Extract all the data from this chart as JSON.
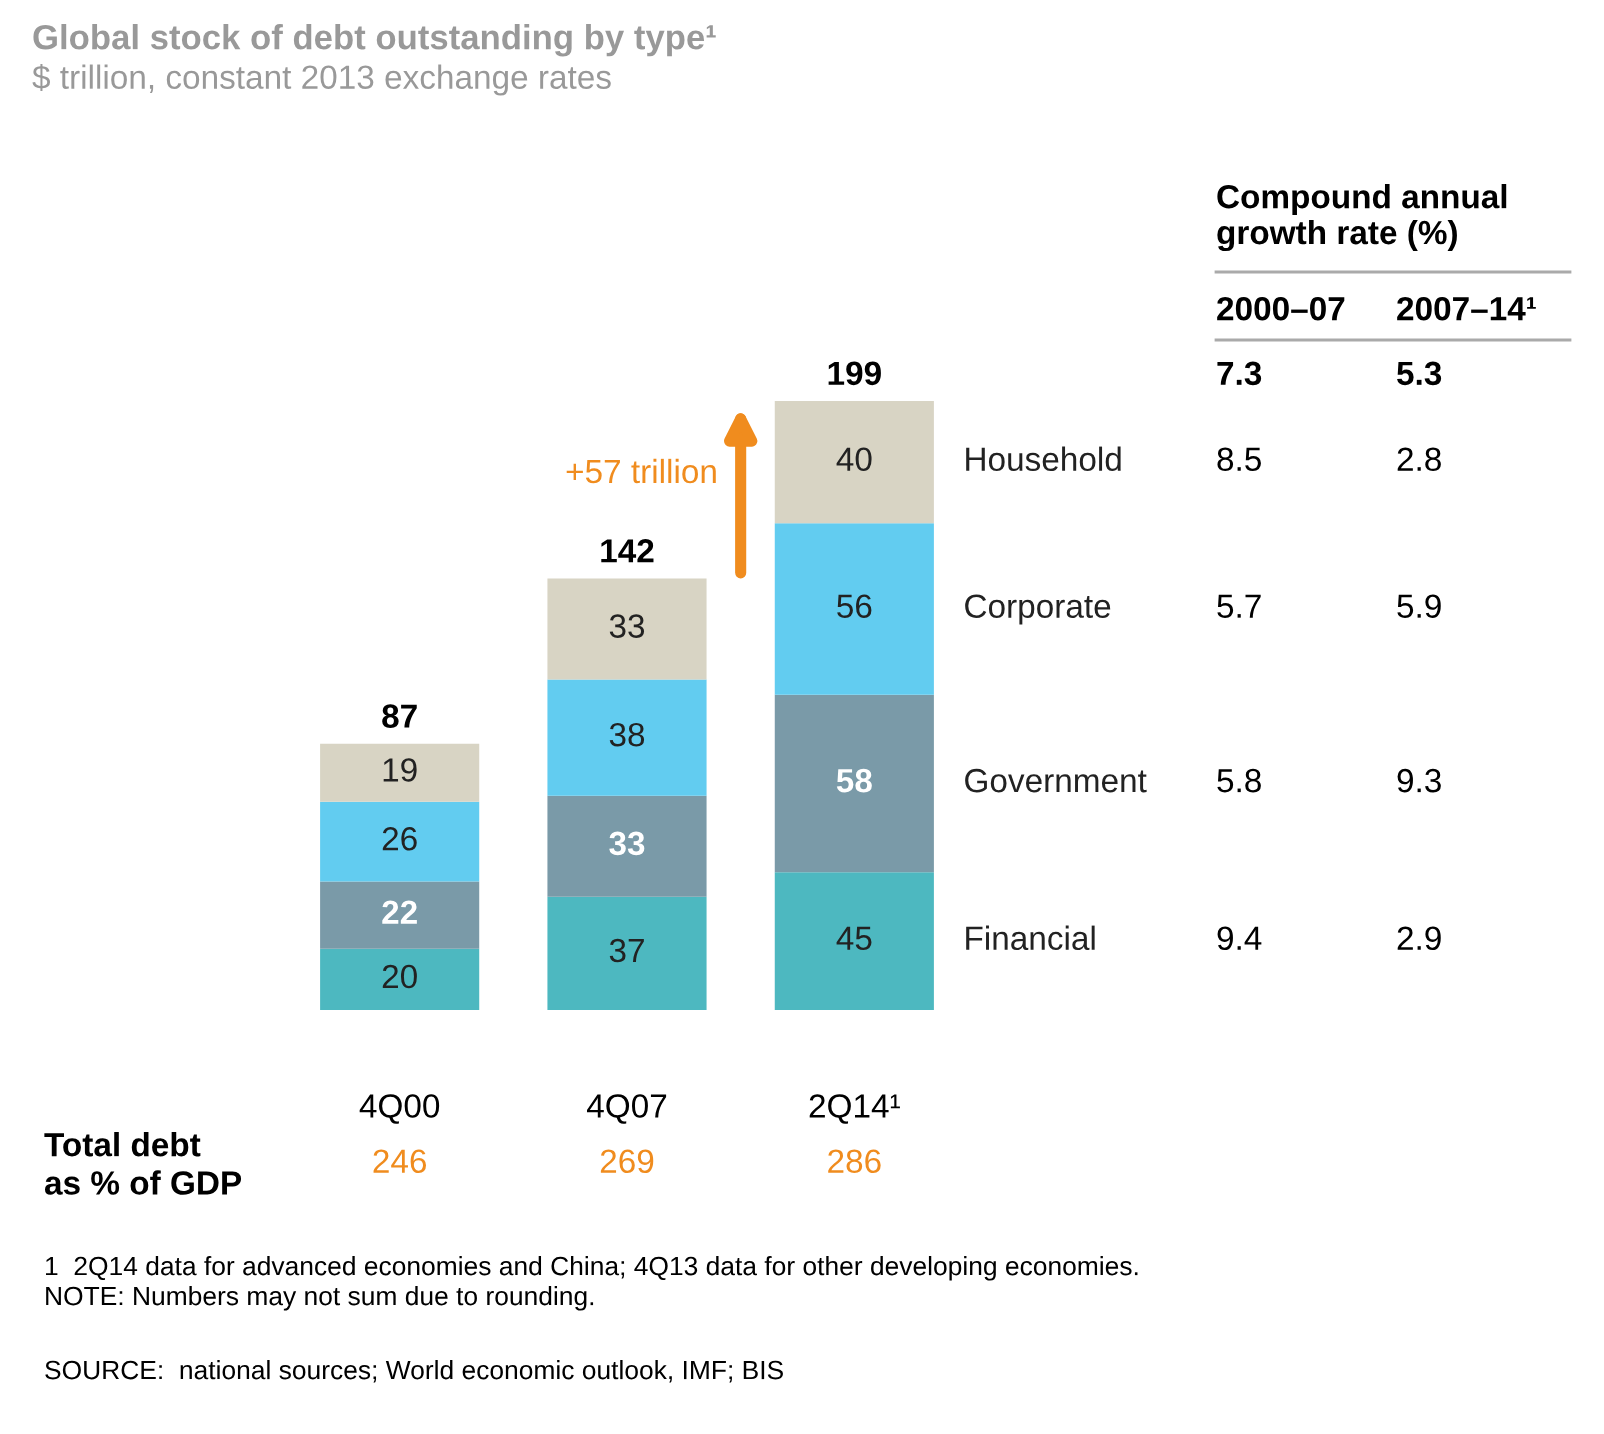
{
  "chart_data": {
    "type": "bar",
    "stacked": true,
    "title": "Global stock of debt outstanding by type¹",
    "subtitle": "$ trillion, constant 2013 exchange rates",
    "categories": [
      "4Q00",
      "4Q07",
      "2Q14¹"
    ],
    "series": [
      {
        "name": "Financial",
        "color": "#4db8c0",
        "values": [
          20,
          37,
          45
        ]
      },
      {
        "name": "Government",
        "color": "#7a9aa8",
        "values": [
          22,
          33,
          58
        ]
      },
      {
        "name": "Corporate",
        "color": "#62ccf0",
        "values": [
          26,
          38,
          56
        ]
      },
      {
        "name": "Household",
        "color": "#d8d4c4",
        "values": [
          19,
          33,
          40
        ]
      }
    ],
    "data_labels": true,
    "totals": [
      "87",
      "142",
      "199"
    ],
    "legend": false,
    "grid": false,
    "tick_labels": "x",
    "annotations": [
      "Compound annual growth rate (%)",
      "2000–07",
      "2007–14¹",
      "7.3",
      "5.3",
      "9.4",
      "2.9",
      "5.8",
      "9.3",
      "5.7",
      "5.9",
      "8.5",
      "2.8",
      "Total debt\nas % of GDP",
      "246",
      "269",
      "286",
      "1  2Q14 data for advanced economies and China; 4Q13 data for other developing economies.",
      "NOTE: Numbers may not sum due to rounding.",
      "SOURCE:  national sources; World economic outlook, IMF; BIS",
      "+57 trillion"
    ]
  }
}
